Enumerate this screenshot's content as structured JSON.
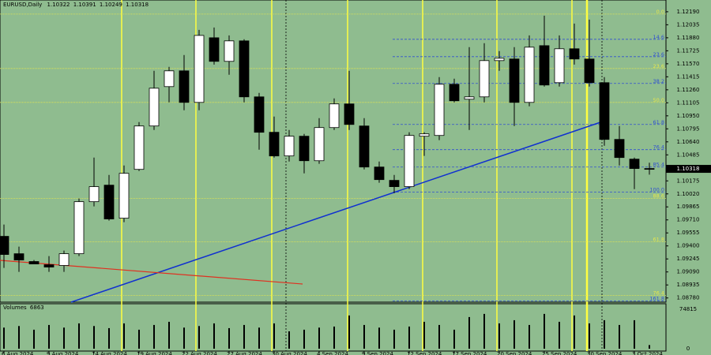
{
  "chart_data": {
    "type": "candlestick",
    "symbol": "EURUSD,Daily",
    "ohlc_header": [
      1.10322,
      1.10391,
      1.10249,
      1.10318
    ],
    "volume_label": "Volumes",
    "categories": [
      "6 Aug 2024",
      null,
      null,
      "9 Aug 2024",
      null,
      null,
      "14 Aug 2024",
      null,
      null,
      "19 Aug 2024",
      null,
      null,
      "22 Aug 2024",
      null,
      null,
      "27 Aug 2024",
      null,
      null,
      "30 Aug 2024",
      null,
      null,
      "4 Sep 2024",
      null,
      null,
      "9 Sep 2024",
      null,
      null,
      "12 Sep 2024",
      null,
      null,
      "17 Sep 2024",
      null,
      null,
      "20 Sep 2024",
      null,
      null,
      "25 Sep 2024",
      null,
      null,
      "30 Sep 2024",
      null,
      null,
      "3 Oct 2024",
      null
    ],
    "open": [
      1.09514,
      1.09307,
      1.09214,
      1.09176,
      1.09167,
      1.09307,
      1.09927,
      1.10124,
      1.0973,
      1.10312,
      1.10829,
      1.11298,
      1.11486,
      1.1111,
      1.1188,
      1.11599,
      1.11843,
      1.11176,
      1.10754,
      1.10472,
      1.10707,
      1.10415,
      1.1081,
      1.11092,
      1.10829,
      1.1034,
      1.10181,
      1.10106,
      1.10707,
      1.10716,
      1.11326,
      1.11148,
      1.11176,
      1.11608,
      1.11627,
      1.1111,
      1.11786,
      1.11345,
      1.11749,
      1.11627,
      1.11345,
      1.10669,
      1.10434,
      1.10322
    ],
    "high": [
      1.09655,
      1.09392,
      1.09232,
      1.09279,
      1.09345,
      1.09965,
      1.10453,
      1.10246,
      1.10359,
      1.10876,
      1.11486,
      1.11533,
      1.11674,
      1.11974,
      1.12002,
      1.11908,
      1.11862,
      1.11223,
      1.10941,
      1.10782,
      1.10735,
      1.10923,
      1.11157,
      1.11486,
      1.10923,
      1.10406,
      1.10246,
      1.10754,
      1.10754,
      1.11411,
      1.11392,
      1.11768,
      1.11815,
      1.11721,
      1.11768,
      1.11908,
      1.12143,
      1.11908,
      1.12049,
      1.12096,
      1.11411,
      1.10829,
      1.10453,
      1.10391
    ],
    "low": [
      1.09138,
      1.09091,
      1.09185,
      1.09091,
      1.09091,
      1.09279,
      1.09871,
      1.09702,
      1.09683,
      1.10293,
      1.10782,
      1.1111,
      1.11016,
      1.11016,
      1.11561,
      1.11439,
      1.1111,
      1.10547,
      1.10453,
      1.10406,
      1.10265,
      1.10378,
      1.10782,
      1.10782,
      1.10312,
      1.10153,
      1.1003,
      1.10077,
      1.10472,
      1.1066,
      1.1111,
      1.10782,
      1.1111,
      1.11486,
      1.10829,
      1.11063,
      1.11298,
      1.11298,
      1.11561,
      1.11298,
      1.10594,
      1.10359,
      1.10077,
      1.10249
    ],
    "close": [
      1.09298,
      1.09232,
      1.09185,
      1.09148,
      1.09307,
      1.09927,
      1.10106,
      1.09721,
      1.10265,
      1.10829,
      1.11279,
      1.11486,
      1.1111,
      1.11908,
      1.11599,
      1.11843,
      1.11176,
      1.10754,
      1.10472,
      1.10707,
      1.10415,
      1.1081,
      1.11092,
      1.10847,
      1.1034,
      1.1019,
      1.10106,
      1.10716,
      1.10735,
      1.11326,
      1.11129,
      1.11176,
      1.11608,
      1.11636,
      1.1111,
      1.11768,
      1.11317,
      1.11749,
      1.11627,
      1.11345,
      1.10669,
      1.10453,
      1.10322,
      1.10318
    ],
    "volumes": [
      40000,
      43000,
      36000,
      45000,
      40000,
      48000,
      43000,
      39000,
      48000,
      36000,
      45000,
      51000,
      40000,
      43000,
      48000,
      39000,
      45000,
      40000,
      48000,
      33000,
      36000,
      40000,
      42000,
      63000,
      45000,
      40000,
      36000,
      42000,
      51000,
      45000,
      36000,
      60000,
      66000,
      48000,
      54000,
      45000,
      66000,
      51000,
      63000,
      48000,
      54000,
      45000,
      54000,
      6863
    ],
    "ylim": [
      1.0873,
      1.1233
    ],
    "yticks": [
      {
        "value": 1.1219,
        "label": "1.12190"
      },
      1.12035,
      {
        "value": 1.1188,
        "label": "1.11880"
      },
      1.11725,
      {
        "value": 1.1157,
        "label": "1.11570"
      },
      1.11415,
      {
        "value": 1.1126,
        "label": "1.11260"
      },
      1.11105,
      {
        "value": 1.1095,
        "label": "1.10950"
      },
      1.10795,
      {
        "value": 1.1064,
        "label": "1.10640"
      },
      1.10485,
      1.10175,
      {
        "value": 1.1002,
        "label": "1.10020"
      },
      1.09865,
      {
        "value": 1.0971,
        "label": "1.09710"
      },
      1.09555,
      {
        "value": 1.094,
        "label": "1.09400"
      },
      1.09245,
      {
        "value": 1.0909,
        "label": "1.09090"
      },
      1.08935,
      {
        "value": 1.0878,
        "label": "1.08780"
      }
    ],
    "volume_ylim": [
      0,
      74815
    ],
    "volume_ticks": [
      0,
      74815
    ],
    "fib_levels": [
      {
        "label": "0.0",
        "price": 1.12162,
        "color": "#e8e84a"
      },
      {
        "label": "14.6",
        "price": 1.11862,
        "color": "#3050d0"
      },
      {
        "label": "23.6",
        "price": 1.11655,
        "color": "#3050d0"
      },
      {
        "label": "23.6",
        "price": 1.11514,
        "color": "#e8e84a"
      },
      {
        "label": "38.2",
        "price": 1.11336,
        "color": "#3050d0"
      },
      {
        "label": "50.0",
        "price": 1.1111,
        "color": "#e8e84a"
      },
      {
        "label": "61.8",
        "price": 1.10847,
        "color": "#3050d0"
      },
      {
        "label": "76.4",
        "price": 1.10547,
        "color": "#3050d0"
      },
      {
        "label": "85.4",
        "price": 1.1034,
        "color": "#3050d0"
      },
      {
        "label": "100.0",
        "price": 1.1004,
        "color": "#3050d0"
      },
      {
        "label": "88.6",
        "price": 1.09965,
        "color": "#e8e84a"
      },
      {
        "label": "61.8",
        "price": 1.09448,
        "color": "#e8e84a"
      },
      {
        "label": "76.4",
        "price": 1.0881,
        "color": "#e8e84a"
      },
      {
        "label": "161.8",
        "price": 1.08744,
        "color": "#3050d0"
      }
    ],
    "bull_color": "#ffffff",
    "bear_color": "#000000"
  }
}
